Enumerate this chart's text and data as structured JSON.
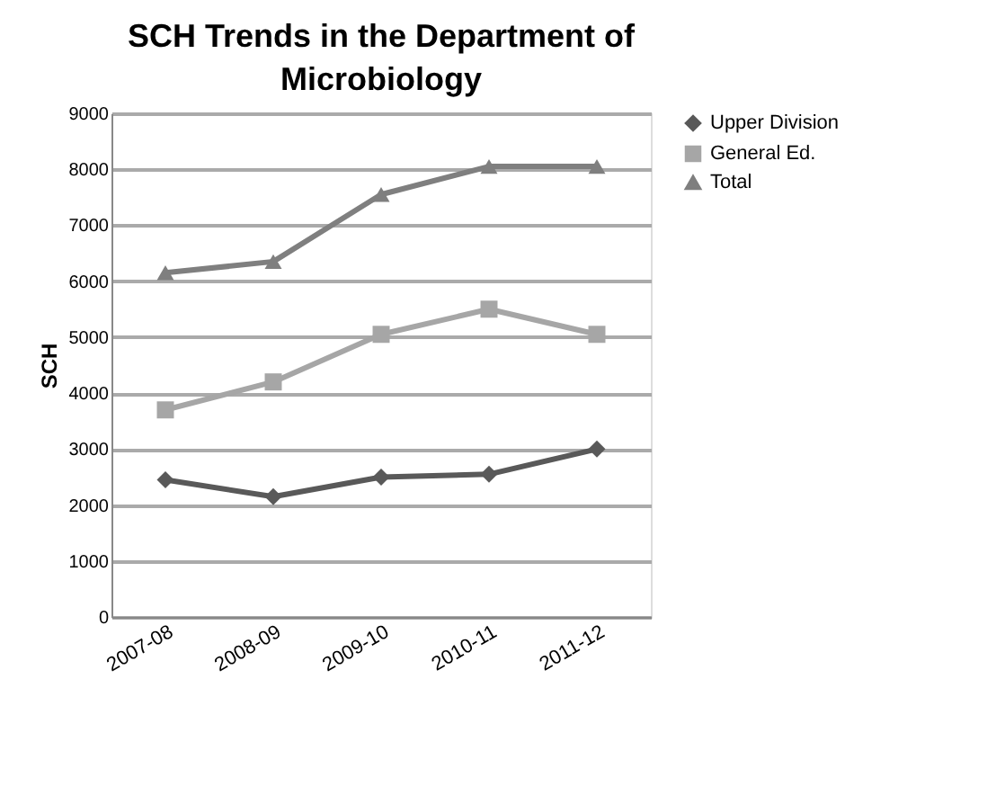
{
  "chart_data": {
    "type": "line",
    "title": "SCH Trends in the Department of Microbiology",
    "ylabel": "SCH",
    "categories": [
      "2007-08",
      "2008-09",
      "2009-10",
      "2010-11",
      "2011-12"
    ],
    "series": [
      {
        "name": "Upper Division",
        "color": "#595959",
        "marker": "diamond",
        "values": [
          2450,
          2150,
          2500,
          2550,
          3000
        ]
      },
      {
        "name": "General Ed.",
        "color": "#a6a6a6",
        "marker": "square",
        "values": [
          3700,
          4200,
          5050,
          5500,
          5050
        ]
      },
      {
        "name": "Total",
        "color": "#7f7f7f",
        "marker": "triangle",
        "values": [
          6150,
          6350,
          7550,
          8050,
          8050
        ]
      }
    ],
    "ylim": [
      0,
      9000
    ],
    "yticks": [
      0,
      1000,
      2000,
      3000,
      4000,
      5000,
      6000,
      7000,
      8000,
      9000
    ],
    "grid": "y",
    "legend": "right",
    "line_style": "solid"
  }
}
